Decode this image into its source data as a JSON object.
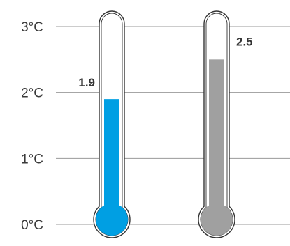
{
  "chart_data": {
    "type": "bar",
    "style": "thermometer",
    "ylim": [
      0,
      3
    ],
    "yticks": [
      0,
      1,
      2,
      3
    ],
    "ytick_labels": [
      "0°C",
      "1°C",
      "2°C",
      "3°C"
    ],
    "grid": true,
    "series": [
      {
        "value": 1.9,
        "label": "1.9",
        "color": "#009fe3"
      },
      {
        "value": 2.5,
        "label": "2.5",
        "color": "#a0a0a0"
      }
    ]
  },
  "colors": {
    "grid": "#999999",
    "outline": "#333333",
    "tube_fill": "#ffffff"
  }
}
